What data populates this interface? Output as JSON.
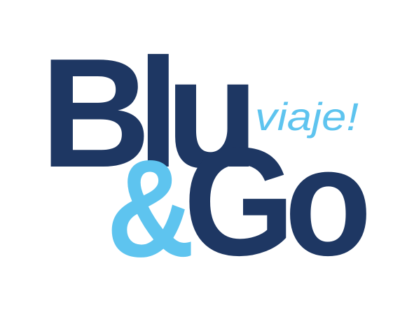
{
  "logo": {
    "word_top": "Blu",
    "ampersand": "&",
    "word_bottom": "Go",
    "tagline": "viaje!"
  },
  "colors": {
    "navy": "#1e3763",
    "sky": "#5ec4ef",
    "background": "#ffffff"
  }
}
